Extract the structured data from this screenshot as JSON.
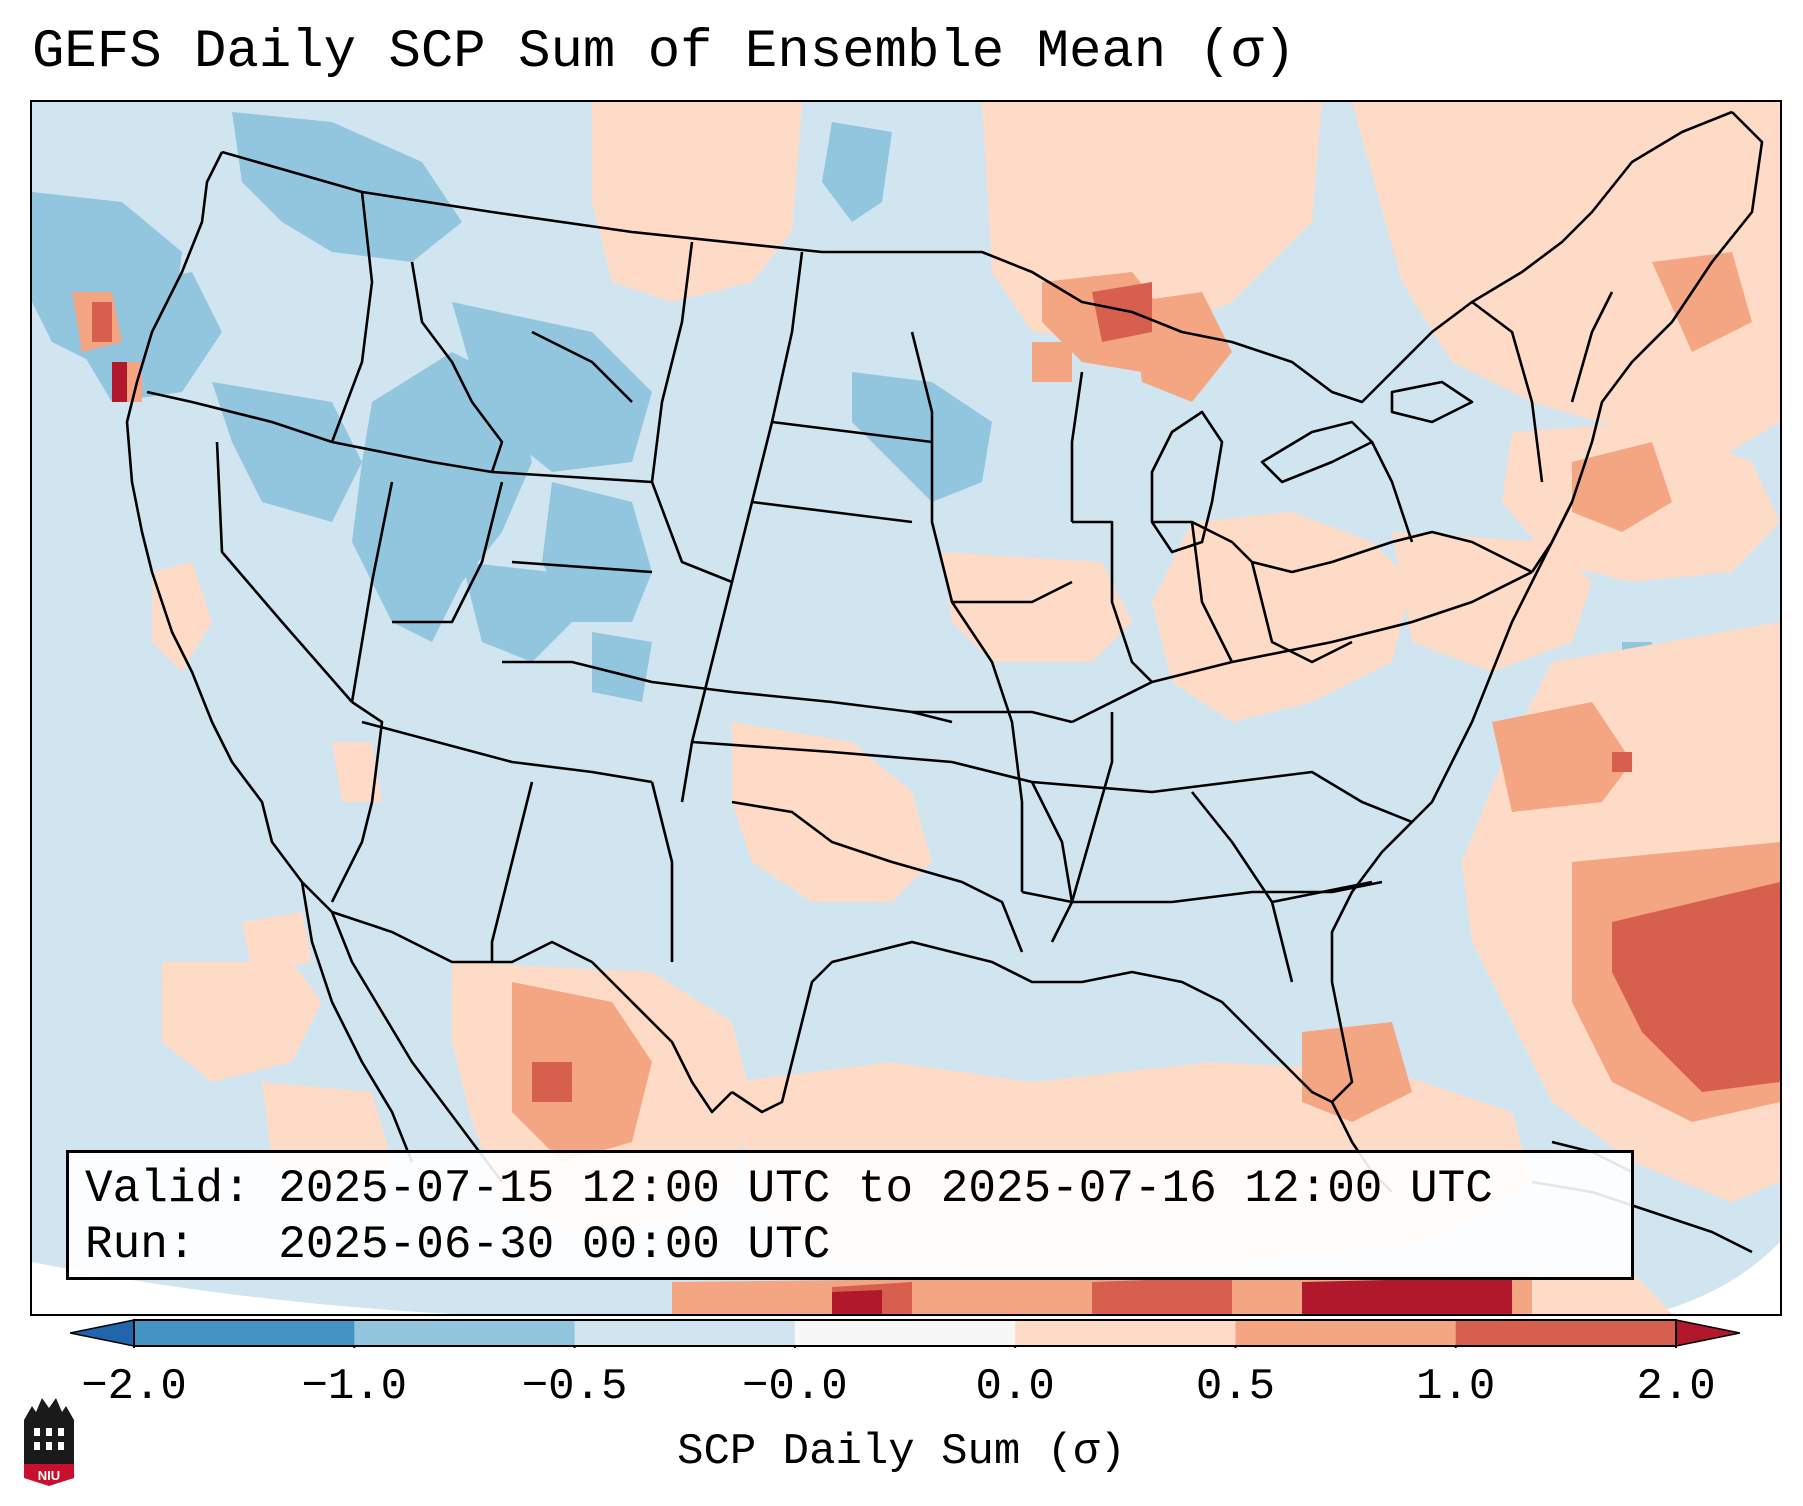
{
  "title": "GEFS Daily SCP Sum of Ensemble Mean (σ)",
  "info": {
    "valid_line": "Valid: 2025-07-15 12:00 UTC to 2025-07-16 12:00 UTC",
    "run_line": "Run:   2025-06-30 00:00 UTC"
  },
  "colorbar": {
    "label": "SCP Daily Sum (σ)",
    "tick_labels": [
      "−2.0",
      "−1.0",
      "−0.5",
      "−0.0",
      "0.0",
      "0.5",
      "1.0",
      "2.0"
    ],
    "bins": [
      {
        "range": "< -2.0",
        "color": "#2166ac"
      },
      {
        "range": "-2.0 to -1.0",
        "color": "#4393c3"
      },
      {
        "range": "-1.0 to -0.5",
        "color": "#92c5de"
      },
      {
        "range": "-0.5 to -0.0",
        "color": "#d1e5f0"
      },
      {
        "range": "-0.0 to 0.0",
        "color": "#f7f7f7"
      },
      {
        "range": "0.0 to 0.5",
        "color": "#fddbc7"
      },
      {
        "range": "0.5 to 1.0",
        "color": "#f4a582"
      },
      {
        "range": "1.0 to 2.0",
        "color": "#d6604d"
      },
      {
        "range": "> 2.0",
        "color": "#b2182b"
      }
    ]
  },
  "logo": {
    "text": "NIU",
    "color": "#c8102e"
  },
  "chart_data": {
    "type": "heatmap",
    "title": "GEFS Daily SCP Sum of Ensemble Mean (σ)",
    "variable": "SCP Daily Sum (σ)",
    "region": "Continental United States",
    "color_scale_ticks": [
      -2.0,
      -1.0,
      -0.5,
      -0.0,
      0.0,
      0.5,
      1.0,
      2.0
    ],
    "qualitative_fields": [
      {
        "area": "Pacific Northwest, Idaho, western Montana, Wyoming",
        "category": "-1.0 to -0.5"
      },
      {
        "area": "Great Basin, Rockies, Plains, Southeast US",
        "category": "-0.5 to -0.0"
      },
      {
        "area": "Upper Great Lakes, southern Canada",
        "category": "0.0 to 1.0"
      },
      {
        "area": "Mid-Atlantic, Ohio Valley, Pennsylvania",
        "category": "0.0 to 0.5"
      },
      {
        "area": "Texas, Gulf of Mexico, northern Mexico",
        "category": "0.0 to 1.0"
      },
      {
        "area": "Western Atlantic off Southeast coast",
        "category": "0.5 to 2.0"
      },
      {
        "area": "Caribbean / Cuba",
        "category": "> 2.0"
      }
    ]
  }
}
